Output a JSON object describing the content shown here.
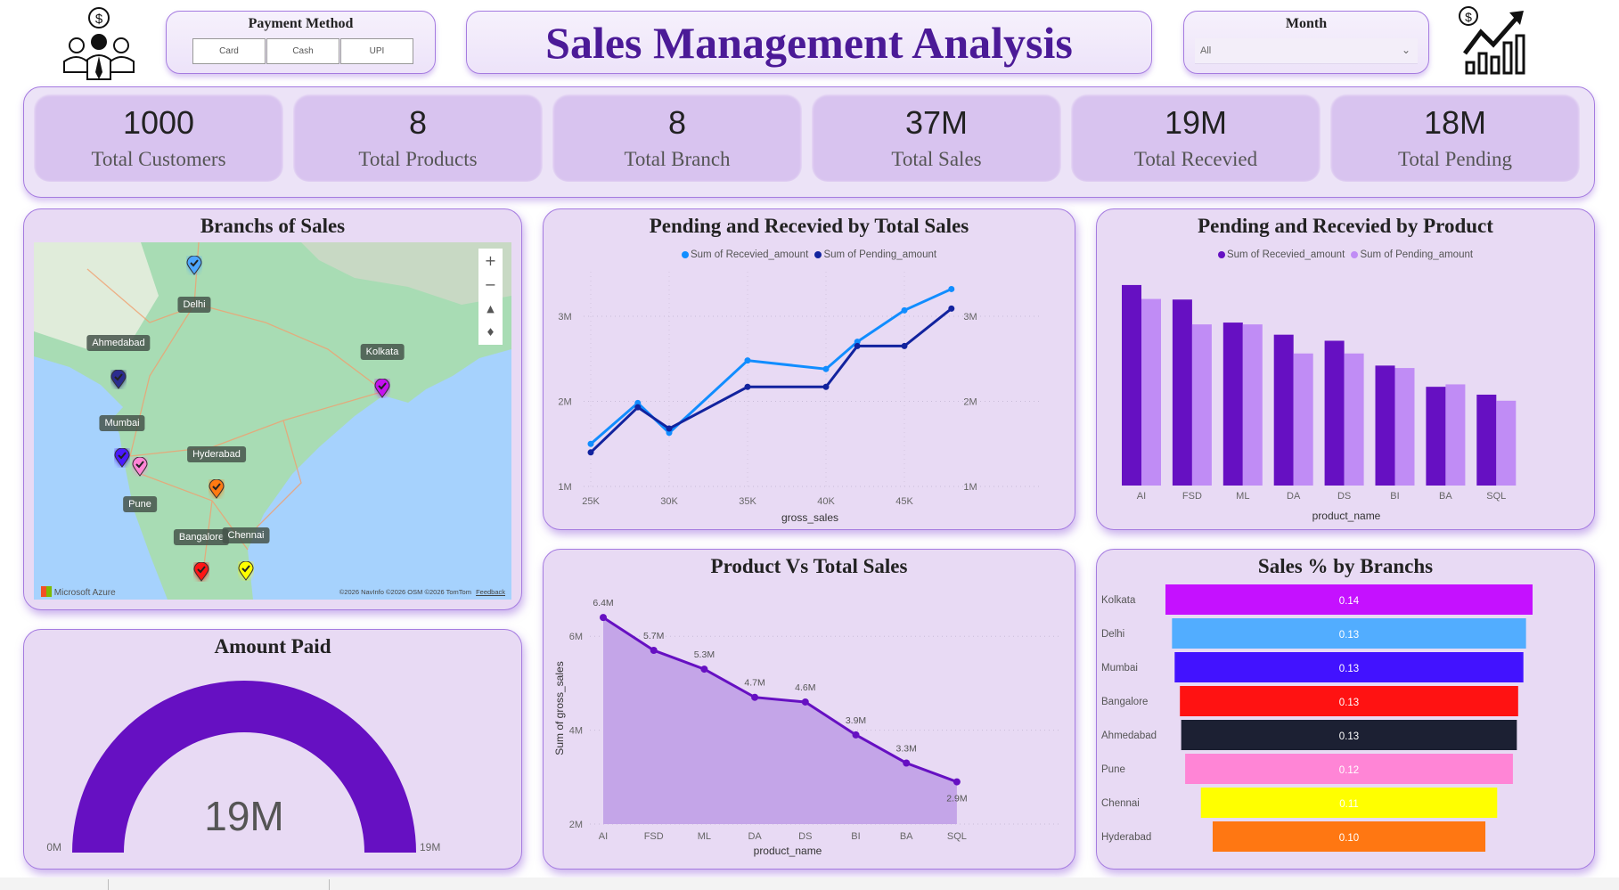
{
  "header": {
    "title": "Sales Management Analysis",
    "payment_filter": {
      "label": "Payment Method",
      "options": [
        "Card",
        "Cash",
        "UPI"
      ]
    },
    "month_filter": {
      "label": "Month",
      "selected": "All"
    },
    "left_icon": "customers-dollar-icon",
    "right_icon": "sales-growth-chart-icon"
  },
  "kpis": [
    {
      "value": "1000",
      "label": "Total Customers"
    },
    {
      "value": "8",
      "label": "Total Products"
    },
    {
      "value": "8",
      "label": "Total Branch"
    },
    {
      "value": "37M",
      "label": "Total Sales"
    },
    {
      "value": "19M",
      "label": "Total Recevied"
    },
    {
      "value": "18M",
      "label": "Total Pending"
    }
  ],
  "map": {
    "title": "Branchs of Sales",
    "branches": [
      {
        "name": "Delhi",
        "color": "#4da6ff"
      },
      {
        "name": "Ahmedabad",
        "color": "#2b2b8f"
      },
      {
        "name": "Kolkata",
        "color": "#c511f0"
      },
      {
        "name": "Mumbai",
        "color": "#4a1aff"
      },
      {
        "name": "Pune",
        "color": "#ff85d6"
      },
      {
        "name": "Hyderabad",
        "color": "#ff7a12"
      },
      {
        "name": "Bangalore",
        "color": "#ff1515"
      },
      {
        "name": "Chennai",
        "color": "#ffff00"
      }
    ],
    "zoom_in": "+",
    "zoom_out": "−",
    "brand": "Microsoft Azure",
    "attribution": "©2026 NavInfo  ©2026 OSM  ©2026 TomTom",
    "feedback": "Feedback"
  },
  "gauge": {
    "title": "Amount Paid",
    "value": 19,
    "value_label": "19M",
    "min_label": "0M",
    "max_label": "19M",
    "min": 0,
    "max": 19,
    "color": "#6610c2"
  },
  "chart_data": [
    {
      "type": "line",
      "title": "Pending and Recevied by Total Sales",
      "xlabel": "gross_sales",
      "ylabel": "",
      "x": [
        25000,
        28000,
        30000,
        35000,
        40000,
        42000,
        45000,
        48000
      ],
      "x_ticks": [
        "25K",
        "30K",
        "35K",
        "40K",
        "45K"
      ],
      "y_ticks": [
        "1M",
        "2M",
        "3M"
      ],
      "ylim": [
        1000000,
        3500000
      ],
      "legend": "top-center",
      "grid": true,
      "series": [
        {
          "name": "Sum of Recevied_amount",
          "color": "#118dff",
          "values": [
            1500000,
            1980000,
            1630000,
            2480000,
            2380000,
            2700000,
            3070000,
            3320000
          ]
        },
        {
          "name": "Sum of Pending_amount",
          "color": "#12239e",
          "values": [
            1400000,
            1930000,
            1680000,
            2170000,
            2170000,
            2650000,
            2650000,
            3090000
          ]
        }
      ]
    },
    {
      "type": "bar",
      "title": "Pending and Recevied by Product",
      "xlabel": "product_name",
      "categories": [
        "AI",
        "FSD",
        "ML",
        "DA",
        "DS",
        "BI",
        "BA",
        "SQL"
      ],
      "ylim": [
        0,
        3500000
      ],
      "legend": "top-center",
      "series": [
        {
          "name": "Sum of Recevied_amount",
          "color": "#6610c2",
          "values": [
            3310000,
            3070000,
            2690000,
            2490000,
            2390000,
            1980000,
            1630000,
            1500000
          ]
        },
        {
          "name": "Sum of Pending_amount",
          "color": "#c08cf5",
          "values": [
            3080000,
            2660000,
            2660000,
            2180000,
            2180000,
            1940000,
            1670000,
            1400000
          ]
        }
      ]
    },
    {
      "type": "area",
      "title": "Product Vs Total Sales",
      "xlabel": "product_name",
      "ylabel": "Sum of gross_sales",
      "categories": [
        "AI",
        "FSD",
        "ML",
        "DA",
        "DS",
        "BI",
        "BA",
        "SQL"
      ],
      "values": [
        6400000,
        5700000,
        5300000,
        4700000,
        4600000,
        3900000,
        3300000,
        2900000
      ],
      "data_labels": [
        "6.4M",
        "5.7M",
        "5.3M",
        "4.7M",
        "4.6M",
        "3.9M",
        "3.3M",
        "2.9M"
      ],
      "y_ticks": [
        "2M",
        "4M",
        "6M"
      ],
      "ylim": [
        2000000,
        6800000
      ],
      "color": "#6610c2",
      "fill": "#c4a5e8"
    },
    {
      "type": "funnel",
      "title": "Sales % by Branchs",
      "categories": [
        "Kolkata",
        "Delhi",
        "Mumbai",
        "Bangalore",
        "Ahmedabad",
        "Pune",
        "Chennai",
        "Hyderabad"
      ],
      "values": [
        0.14,
        0.135,
        0.133,
        0.129,
        0.128,
        0.125,
        0.113,
        0.104
      ],
      "data_labels": [
        "0.14",
        "0.13",
        "0.13",
        "0.13",
        "0.13",
        "0.12",
        "0.11",
        "0.10"
      ],
      "colors": [
        "#c511ff",
        "#52adff",
        "#4212ff",
        "#ff1212",
        "#1c2033",
        "#ff85d6",
        "#ffff00",
        "#ff7712"
      ]
    }
  ]
}
